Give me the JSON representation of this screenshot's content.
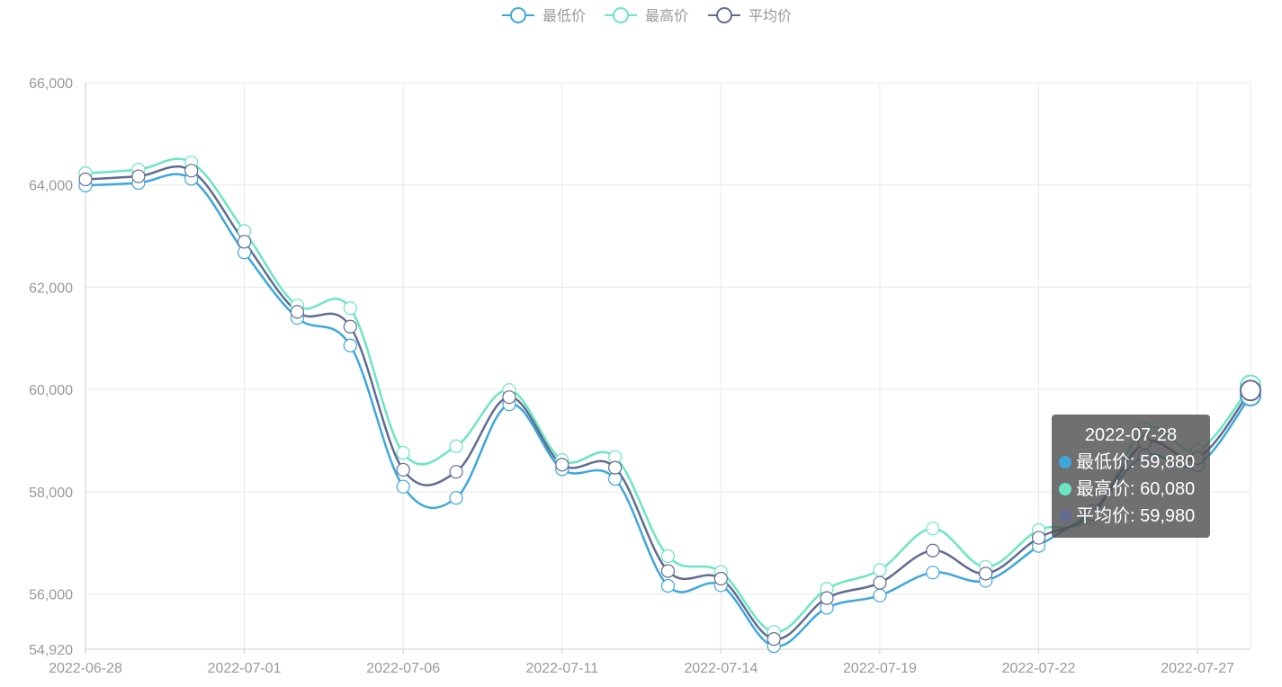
{
  "legend": [
    {
      "label": "最低价",
      "color": "#3fa7dc"
    },
    {
      "label": "最高价",
      "color": "#6be6c1"
    },
    {
      "label": "平均价",
      "color": "#626c91"
    }
  ],
  "tooltip": {
    "title": "2022-07-28",
    "rows": [
      {
        "label": "最低价",
        "value": "59,880",
        "color": "#3fa7dc"
      },
      {
        "label": "最高价",
        "value": "60,080",
        "color": "#6be6c1"
      },
      {
        "label": "平均价",
        "value": "59,980",
        "color": "#626c91"
      }
    ]
  },
  "chart_data": {
    "type": "line",
    "smooth": true,
    "x": [
      "2022-06-28",
      "2022-06-29",
      "2022-06-30",
      "2022-07-01",
      "2022-07-04",
      "2022-07-05",
      "2022-07-06",
      "2022-07-07",
      "2022-07-08",
      "2022-07-11",
      "2022-07-12",
      "2022-07-13",
      "2022-07-14",
      "2022-07-15",
      "2022-07-18",
      "2022-07-19",
      "2022-07-20",
      "2022-07-21",
      "2022-07-22",
      "2022-07-25",
      "2022-07-26",
      "2022-07-27",
      "2022-07-28"
    ],
    "x_tick_labels": [
      "2022-06-28",
      "2022-07-01",
      "2022-07-06",
      "2022-07-11",
      "2022-07-14",
      "2022-07-19",
      "2022-07-22",
      "2022-07-27"
    ],
    "series": [
      {
        "name": "最低价",
        "color": "#3fa7dc",
        "values": [
          63990,
          64040,
          64120,
          62680,
          61400,
          60860,
          58100,
          57880,
          59710,
          58440,
          58250,
          56160,
          56170,
          54980,
          55730,
          55970,
          56420,
          56260,
          56940,
          57620,
          58700,
          58520,
          59880
        ]
      },
      {
        "name": "最高价",
        "color": "#6be6c1",
        "values": [
          64230,
          64300,
          64440,
          63100,
          61640,
          61590,
          58760,
          58890,
          59990,
          58620,
          58680,
          56740,
          56430,
          55260,
          56100,
          56470,
          57280,
          56530,
          57250,
          57490,
          59230,
          58810,
          60080
        ]
      },
      {
        "name": "平均价",
        "color": "#626c91",
        "values": [
          64110,
          64170,
          64280,
          62890,
          61520,
          61230,
          58430,
          58390,
          59850,
          58530,
          58470,
          56450,
          56300,
          55120,
          55920,
          56220,
          56850,
          56400,
          57100,
          57560,
          58960,
          58660,
          59980
        ]
      }
    ],
    "y_ticks": [
      54920,
      56000,
      58000,
      60000,
      62000,
      64000,
      66000
    ],
    "y_tick_labels": [
      "54,920",
      "56,000",
      "58,000",
      "60,000",
      "62,000",
      "64,000",
      "66,000"
    ],
    "ylim": [
      54920,
      66000
    ],
    "grid": true,
    "legend_position": "top-center"
  }
}
